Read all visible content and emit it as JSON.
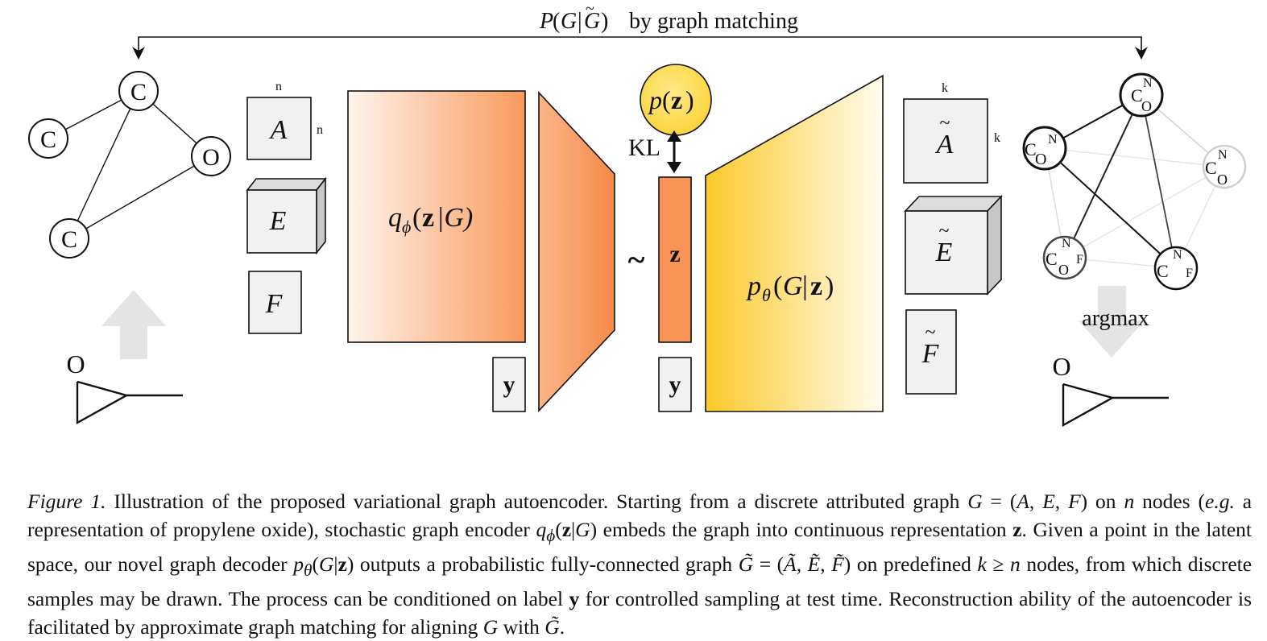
{
  "figure": {
    "top_label": "by graph matching",
    "left_graph_atoms": [
      "C",
      "C",
      "O",
      "C"
    ],
    "mat_n_top": "n",
    "mat_n_side": "n",
    "mat_A": "A",
    "mat_E": "E",
    "mat_F": "F",
    "encoder_label": "|G)",
    "y_label": "y",
    "tilde": "~",
    "z_label": "z",
    "pz_label": "p(z)",
    "kl_label": "KL",
    "decoder_label": "|z)",
    "mat_k_top": "k",
    "mat_k_side": "k",
    "argmax_label": "argmax",
    "molecule_atom": "O"
  },
  "caption": {
    "label": "Figure 1.",
    "text1": "Illustration of the proposed variational graph autoencoder. Starting from a discrete attributed graph",
    "text2": "nodes (",
    "eg": "e.g.",
    "text3": "a representation of propylene oxide), stochastic graph encoder",
    "text4": "embeds the graph into continuous representation",
    "text5": ". Given a point in the latent space, our novel graph decoder",
    "text6": "outputs a probabilistic fully-connected graph",
    "text7": "on predefined",
    "text8": "nodes, from which discrete samples may be drawn. The process can be conditioned on label",
    "text9": "for controlled sampling at test time. Reconstruction ability of the autoencoder is facilitated by approximate graph matching for aligning",
    "text10": "with",
    "on": "on",
    "z": "z",
    "y": "y"
  }
}
